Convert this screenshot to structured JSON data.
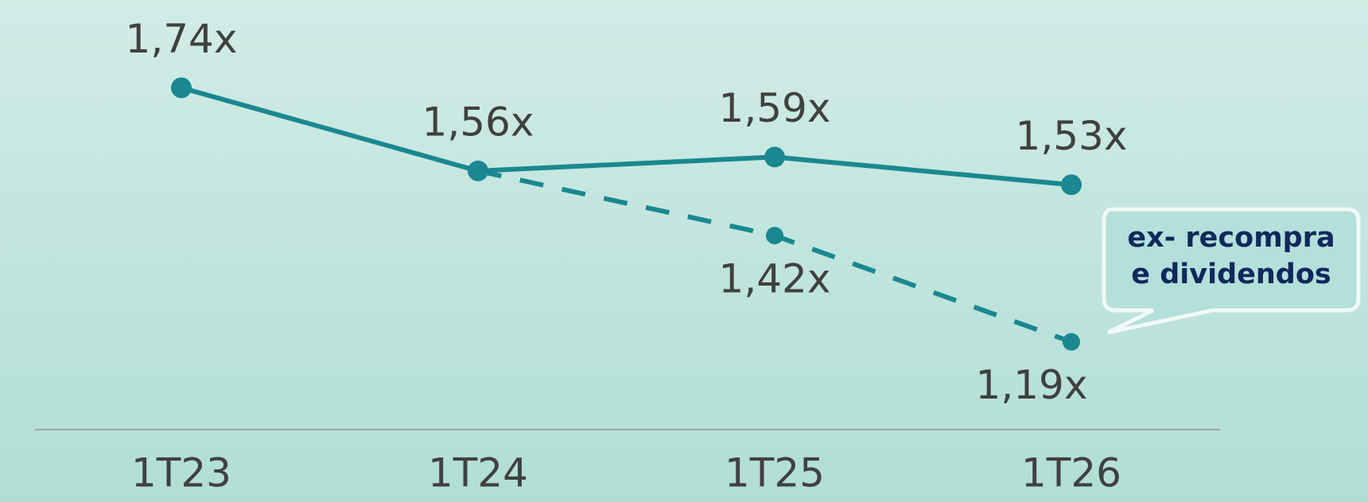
{
  "chart_data": {
    "type": "line",
    "categories": [
      "1T23",
      "1T24",
      "1T25",
      "1T26"
    ],
    "series": [
      {
        "color": "#1a8890",
        "dash": false,
        "values": [
          1.74,
          1.56,
          1.59,
          1.53
        ],
        "value_labels": [
          "1,74x",
          "1,56x",
          "1,59x",
          "1,53x"
        ]
      },
      {
        "color": "#1a8890",
        "dash": true,
        "values": [
          null,
          1.56,
          1.42,
          1.19
        ],
        "value_labels": [
          null,
          null,
          "1,42x",
          "1,19x"
        ]
      }
    ],
    "ylim": [
      1.0,
      1.93
    ],
    "annotation": [
      "ex- recompra",
      "e dividendos"
    ]
  }
}
